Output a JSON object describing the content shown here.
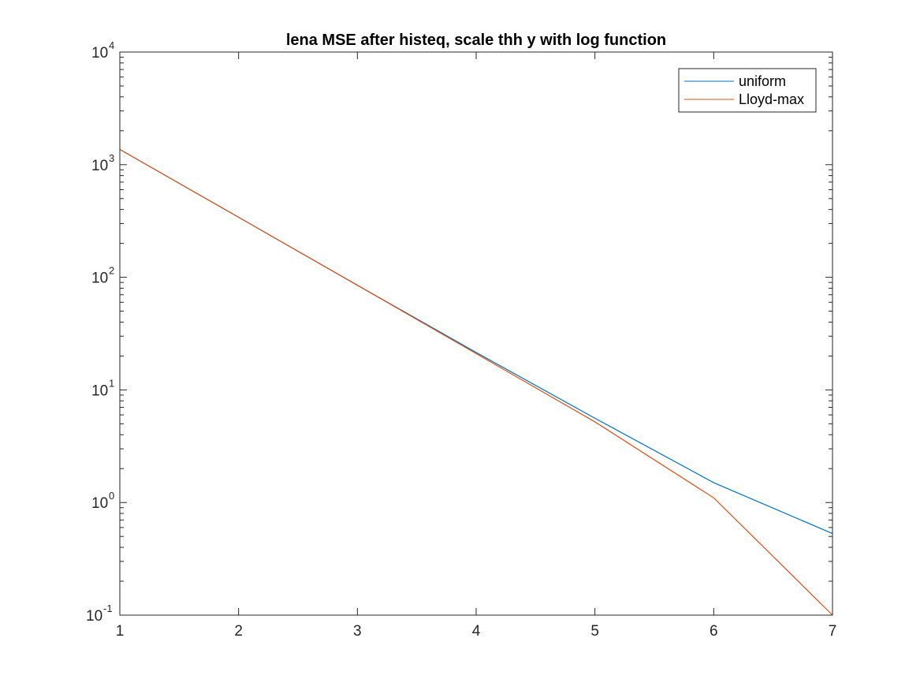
{
  "chart_data": {
    "type": "line",
    "title": "lena MSE after histeq, scale thh y with log function",
    "xlabel": "",
    "ylabel": "",
    "x": [
      1,
      2,
      3,
      4,
      5,
      6,
      7
    ],
    "xlim": [
      1,
      7
    ],
    "ylim": [
      0.1,
      10000
    ],
    "yscale": "log",
    "grid": false,
    "legend_position": "top-right",
    "x_ticks": [
      "1",
      "2",
      "3",
      "4",
      "5",
      "6",
      "7"
    ],
    "y_ticks": [
      {
        "base": "10",
        "exp": "-1"
      },
      {
        "base": "10",
        "exp": "0"
      },
      {
        "base": "10",
        "exp": "1"
      },
      {
        "base": "10",
        "exp": "2"
      },
      {
        "base": "10",
        "exp": "3"
      },
      {
        "base": "10",
        "exp": "4"
      }
    ],
    "series": [
      {
        "name": "uniform",
        "color": "#0072BD",
        "values": [
          1365,
          341,
          85,
          21.5,
          5.6,
          1.5,
          0.53
        ]
      },
      {
        "name": "Lloyd-max",
        "color": "#D95319",
        "values": [
          1365,
          341,
          85,
          21,
          5.2,
          1.1,
          0.1
        ]
      }
    ]
  }
}
